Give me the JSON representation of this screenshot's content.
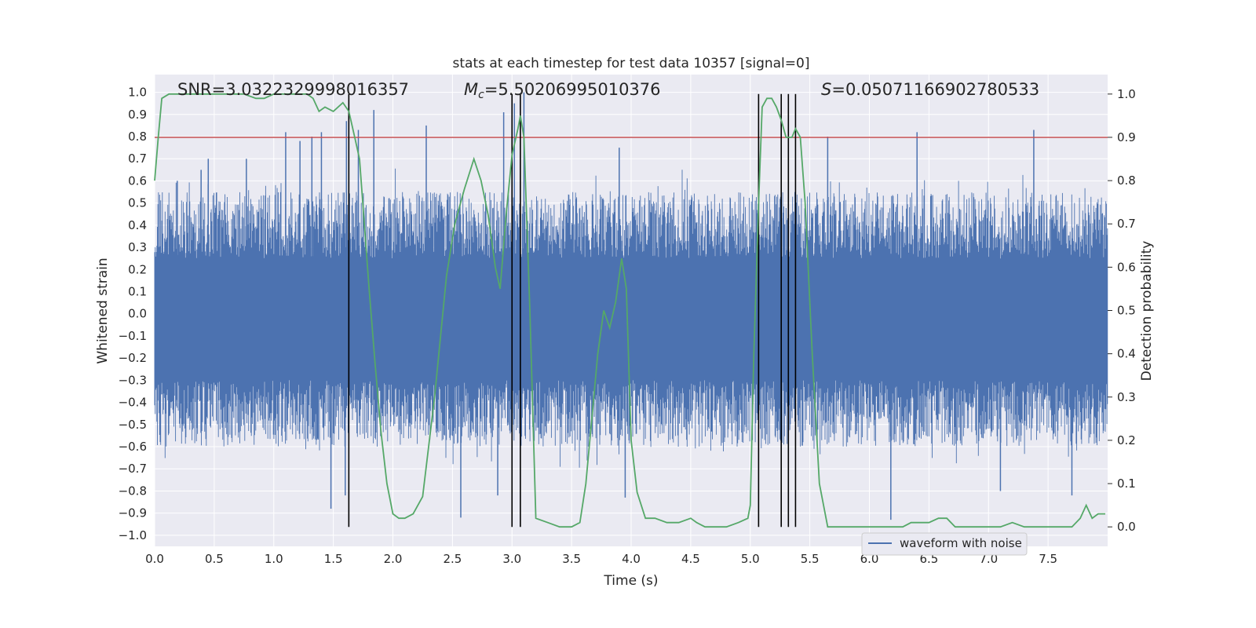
{
  "chart_data": {
    "type": "line",
    "title": "stats at each timestep for test data 10357 [signal=0]",
    "xlabel": "Time (s)",
    "ylabel_left": "Whitened strain",
    "ylabel_right": "Detection probability",
    "xlim": [
      0.0,
      8.0
    ],
    "ylim_left": [
      -1.05,
      1.08
    ],
    "ylim_right": [
      -0.045,
      1.045
    ],
    "xticks": [
      "0.0",
      "0.5",
      "1.0",
      "1.5",
      "2.0",
      "2.5",
      "3.0",
      "3.5",
      "4.0",
      "4.5",
      "5.0",
      "5.5",
      "6.0",
      "6.5",
      "7.0",
      "7.5"
    ],
    "yticks_left": [
      "−1.0",
      "−0.9",
      "−0.8",
      "−0.7",
      "−0.6",
      "−0.5",
      "−0.4",
      "−0.3",
      "−0.2",
      "−0.1",
      "0.0",
      "0.1",
      "0.2",
      "0.3",
      "0.4",
      "0.5",
      "0.6",
      "0.7",
      "0.8",
      "0.9",
      "1.0"
    ],
    "yticks_right": [
      "0.0",
      "0.1",
      "0.2",
      "0.3",
      "0.4",
      "0.5",
      "0.6",
      "0.7",
      "0.8",
      "0.9",
      "1.0"
    ],
    "annotations": {
      "snr": "SNR=3.0322329998016357",
      "mc_symbol": "M",
      "mc_sub": "c",
      "mc_value": "=5.50206995010376",
      "s_symbol": "S",
      "s_value": "=0.05071166902780533"
    },
    "legend": {
      "position": "lower-right",
      "entries": [
        "waveform with noise"
      ]
    },
    "threshold": 0.9,
    "vertical_markers": [
      1.63,
      3.0,
      3.07,
      5.07,
      5.26,
      5.32,
      5.38
    ],
    "series": [
      {
        "name": "waveform with noise",
        "axis": "left",
        "color": "#4c72b0",
        "envelope": {
          "upper_typical": [
            0.25,
            0.55
          ],
          "lower_typical": [
            -0.3,
            -0.6
          ]
        },
        "spikes": [
          [
            0.19,
            0.6
          ],
          [
            0.39,
            0.65
          ],
          [
            0.45,
            0.7
          ],
          [
            0.77,
            0.7
          ],
          [
            1.1,
            0.82
          ],
          [
            1.22,
            0.78
          ],
          [
            1.32,
            0.8
          ],
          [
            1.4,
            0.82
          ],
          [
            1.61,
            0.87
          ],
          [
            1.71,
            0.83
          ],
          [
            1.84,
            0.92
          ],
          [
            2.28,
            0.85
          ],
          [
            2.93,
            0.91
          ],
          [
            3.02,
            0.95
          ],
          [
            3.1,
            1.0
          ],
          [
            3.9,
            0.75
          ],
          [
            5.65,
            0.8
          ],
          [
            6.4,
            0.82
          ],
          [
            7.38,
            0.83
          ],
          [
            1.48,
            -0.88
          ],
          [
            1.6,
            -0.82
          ],
          [
            2.57,
            -0.92
          ],
          [
            2.88,
            -0.82
          ],
          [
            3.95,
            -0.83
          ],
          [
            6.18,
            -0.93
          ],
          [
            7.1,
            -0.8
          ],
          [
            7.7,
            -0.82
          ]
        ]
      },
      {
        "name": "",
        "axis": "right",
        "color": "#55a868",
        "x": [
          0.0,
          0.03,
          0.06,
          0.12,
          0.2,
          0.3,
          0.4,
          0.55,
          0.65,
          0.75,
          0.85,
          0.92,
          1.0,
          1.1,
          1.2,
          1.28,
          1.33,
          1.38,
          1.43,
          1.5,
          1.58,
          1.63,
          1.68,
          1.72,
          1.76,
          1.8,
          1.85,
          1.9,
          1.95,
          2.0,
          2.05,
          2.1,
          2.17,
          2.25,
          2.35,
          2.45,
          2.52,
          2.6,
          2.68,
          2.74,
          2.8,
          2.86,
          2.9,
          2.95,
          3.0,
          3.05,
          3.07,
          3.1,
          3.15,
          3.2,
          3.3,
          3.4,
          3.5,
          3.57,
          3.62,
          3.67,
          3.72,
          3.77,
          3.82,
          3.87,
          3.92,
          3.96,
          4.0,
          4.05,
          4.12,
          4.2,
          4.3,
          4.4,
          4.5,
          4.55,
          4.62,
          4.7,
          4.8,
          4.9,
          4.98,
          5.0,
          5.03,
          5.07,
          5.1,
          5.14,
          5.18,
          5.22,
          5.26,
          5.3,
          5.35,
          5.38,
          5.42,
          5.46,
          5.52,
          5.58,
          5.65,
          5.8,
          6.0,
          6.2,
          6.28,
          6.35,
          6.42,
          6.5,
          6.58,
          6.65,
          6.72,
          6.8,
          6.9,
          7.0,
          7.1,
          7.2,
          7.3,
          7.4,
          7.5,
          7.6,
          7.7,
          7.77,
          7.82,
          7.87,
          7.92,
          7.98
        ],
        "y": [
          0.8,
          0.9,
          0.99,
          1.0,
          1.0,
          1.0,
          1.0,
          1.0,
          1.0,
          1.0,
          0.99,
          0.99,
          1.0,
          1.0,
          1.0,
          1.0,
          0.99,
          0.96,
          0.97,
          0.96,
          0.98,
          0.96,
          0.9,
          0.85,
          0.7,
          0.55,
          0.38,
          0.22,
          0.1,
          0.03,
          0.02,
          0.02,
          0.03,
          0.07,
          0.3,
          0.58,
          0.7,
          0.78,
          0.85,
          0.8,
          0.72,
          0.6,
          0.55,
          0.72,
          0.86,
          0.92,
          0.95,
          0.9,
          0.5,
          0.02,
          0.01,
          0.0,
          0.0,
          0.01,
          0.1,
          0.25,
          0.4,
          0.5,
          0.46,
          0.52,
          0.62,
          0.55,
          0.2,
          0.08,
          0.02,
          0.02,
          0.01,
          0.01,
          0.02,
          0.01,
          0.0,
          0.0,
          0.0,
          0.01,
          0.02,
          0.05,
          0.4,
          0.75,
          0.97,
          0.99,
          0.99,
          0.97,
          0.94,
          0.9,
          0.9,
          0.92,
          0.9,
          0.75,
          0.4,
          0.1,
          0.0,
          0.0,
          0.0,
          0.0,
          0.0,
          0.01,
          0.01,
          0.01,
          0.02,
          0.02,
          0.0,
          0.0,
          0.0,
          0.0,
          0.0,
          0.01,
          0.0,
          0.0,
          0.0,
          0.0,
          0.0,
          0.02,
          0.05,
          0.02,
          0.03,
          0.03
        ]
      }
    ]
  },
  "colors": {
    "axes_bg": "#eaeaf2",
    "grid": "#ffffff",
    "threshold": "#c44e52",
    "marker": "#000000"
  }
}
